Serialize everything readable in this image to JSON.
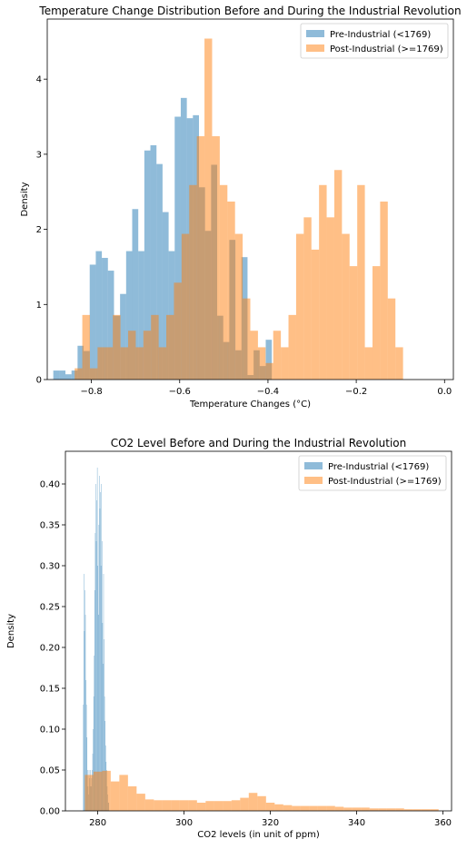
{
  "chart_data": [
    {
      "type": "histogram",
      "title": "Temperature Change Distribution Before and During the Industrial Revolution",
      "xlabel": "Temperature Changes (°C)",
      "ylabel": "Density",
      "xlim": [
        -0.9,
        0.02
      ],
      "ylim": [
        0,
        4.8
      ],
      "xticks": [
        -0.8,
        -0.6,
        -0.4,
        -0.2,
        0.0
      ],
      "xtick_labels": [
        "−0.8",
        "−0.6",
        "−0.4",
        "−0.2",
        "0.0"
      ],
      "yticks": [
        0,
        1,
        2,
        3,
        4
      ],
      "ytick_labels": [
        "0",
        "1",
        "2",
        "3",
        "4"
      ],
      "grid": false,
      "legend_position": "top-right",
      "series": [
        {
          "name": "Pre-Industrial (<1769)",
          "color": "#1f77b4",
          "opacity": 0.5,
          "bin_start": -0.8863,
          "bin_width": 0.01375,
          "values": [
            0.12,
            0.12,
            0.07,
            0.12,
            0.45,
            0.38,
            1.53,
            1.71,
            1.62,
            1.45,
            0.85,
            1.14,
            1.71,
            2.27,
            1.71,
            3.05,
            3.12,
            2.87,
            2.23,
            1.71,
            3.5,
            3.75,
            3.48,
            3.52,
            2.56,
            1.98,
            2.86,
            0.85,
            0.5,
            1.86,
            0.39,
            1.63,
            0.06,
            0.39,
            0.18,
            0.53
          ]
        },
        {
          "name": "Post-Industrial (>=1769)",
          "color": "#ff7f0e",
          "opacity": 0.5,
          "bin_start": -0.8379,
          "bin_width": 0.0173,
          "values": [
            0.15,
            0.86,
            0.15,
            0.43,
            0.43,
            0.86,
            0.43,
            0.65,
            0.43,
            0.65,
            0.86,
            0.43,
            0.86,
            1.29,
            1.94,
            2.59,
            3.24,
            4.54,
            3.24,
            2.59,
            2.37,
            1.94,
            1.08,
            0.65,
            0.43,
            0.22,
            0.65,
            0.43,
            0.86,
            1.94,
            2.16,
            1.73,
            2.59,
            2.16,
            2.79,
            1.94,
            1.51,
            2.59,
            0.43,
            1.51,
            2.37,
            1.08,
            0.43
          ]
        }
      ]
    },
    {
      "type": "histogram",
      "title": "CO2 Level Before and During the Industrial Revolution",
      "xlabel": "CO2 levels (in unit of ppm)",
      "ylabel": "Density",
      "xlim": [
        272.5,
        362
      ],
      "ylim": [
        0,
        0.44
      ],
      "xticks": [
        280,
        300,
        320,
        340,
        360
      ],
      "xtick_labels": [
        "280",
        "300",
        "320",
        "340",
        "360"
      ],
      "yticks": [
        0.0,
        0.05,
        0.1,
        0.15,
        0.2,
        0.25,
        0.3,
        0.35,
        0.4
      ],
      "ytick_labels": [
        "0.00",
        "0.05",
        "0.10",
        "0.15",
        "0.20",
        "0.25",
        "0.30",
        "0.35",
        "0.40"
      ],
      "grid": false,
      "legend_position": "top-right",
      "series": [
        {
          "name": "Pre-Industrial (<1769)",
          "color": "#1f77b4",
          "opacity": 0.5,
          "bin_start": 276.6,
          "bin_width": 0.12,
          "values": [
            0.13,
            0.29,
            0.22,
            0.27,
            0.24,
            0.16,
            0.13,
            0.09,
            0.05,
            0.03,
            0.02,
            0.05,
            0.04,
            0.03,
            0.05,
            0.03,
            0.04,
            0.05,
            0.07,
            0.1,
            0.14,
            0.19,
            0.27,
            0.34,
            0.4,
            0.33,
            0.38,
            0.42,
            0.3,
            0.24,
            0.35,
            0.41,
            0.37,
            0.39,
            0.3,
            0.4,
            0.33,
            0.23,
            0.18,
            0.29,
            0.21,
            0.14,
            0.11,
            0.08,
            0.06,
            0.05,
            0.03,
            0.02,
            0.01,
            0.01
          ]
        },
        {
          "name": "Post-Industrial (>=1769)",
          "color": "#ff7f0e",
          "opacity": 0.5,
          "bin_start": 277.0,
          "bin_width": 2.0,
          "values": [
            0.044,
            0.048,
            0.049,
            0.036,
            0.044,
            0.03,
            0.021,
            0.014,
            0.013,
            0.013,
            0.013,
            0.013,
            0.013,
            0.01,
            0.012,
            0.012,
            0.012,
            0.013,
            0.016,
            0.022,
            0.018,
            0.01,
            0.008,
            0.007,
            0.006,
            0.006,
            0.006,
            0.006,
            0.006,
            0.005,
            0.004,
            0.004,
            0.004,
            0.003,
            0.003,
            0.003,
            0.003,
            0.002,
            0.002,
            0.002,
            0.002
          ]
        }
      ]
    }
  ]
}
